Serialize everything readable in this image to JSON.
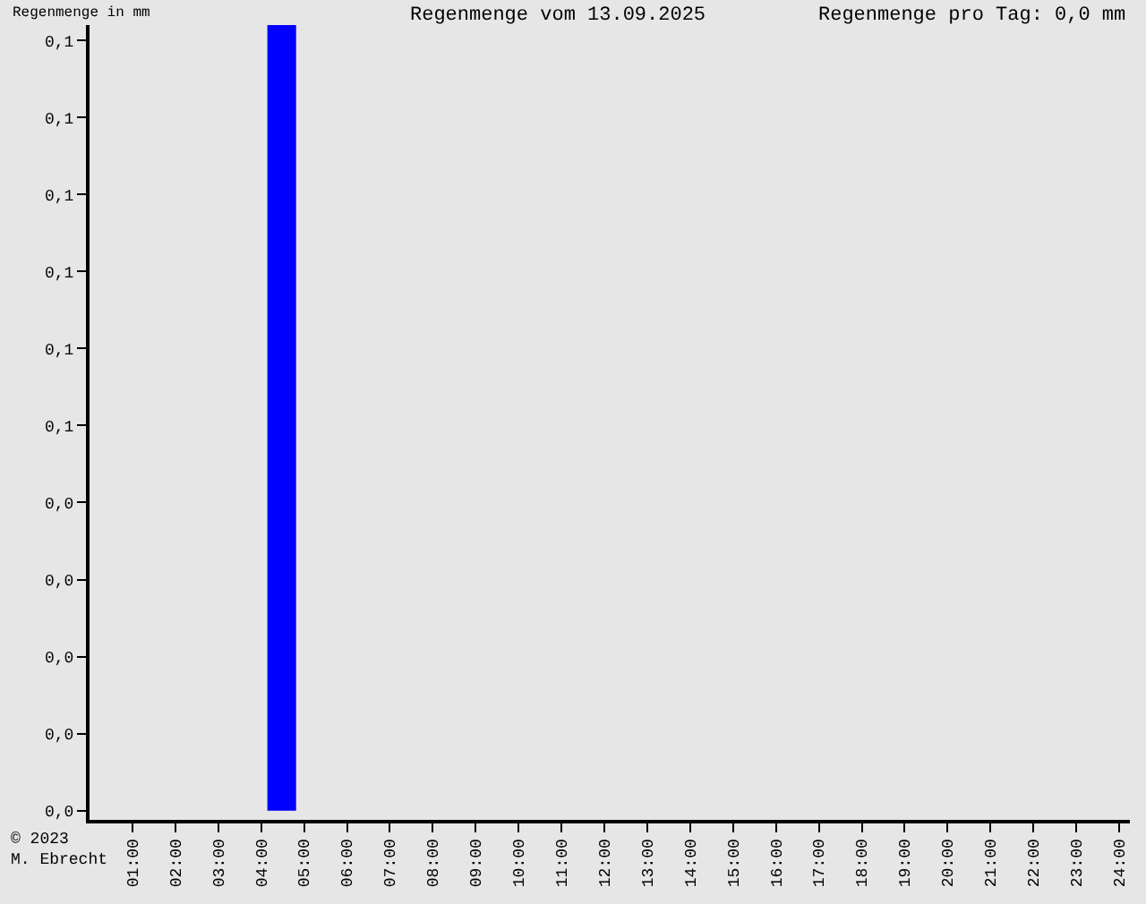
{
  "chart_data": {
    "type": "bar",
    "title": "Regenmenge vom 13.09.2025",
    "ylabel": "Regenmenge in mm",
    "annotations": [
      "Regenmenge pro Tag: 0,0 mm",
      "© 2023\nM. Ebrecht"
    ],
    "x": [
      4.48
    ],
    "values": [
      0.102
    ],
    "color": "#0000ff",
    "xlim": [
      0,
      24.25
    ],
    "ylim": [
      -0.0012,
      0.102
    ],
    "xticks": [
      {
        "value": 1,
        "label": "01:00"
      },
      {
        "value": 2,
        "label": "02:00"
      },
      {
        "value": 3,
        "label": "03:00"
      },
      {
        "value": 4,
        "label": "04:00"
      },
      {
        "value": 5,
        "label": "05:00"
      },
      {
        "value": 6,
        "label": "06:00"
      },
      {
        "value": 7,
        "label": "07:00"
      },
      {
        "value": 8,
        "label": "08:00"
      },
      {
        "value": 9,
        "label": "09:00"
      },
      {
        "value": 10,
        "label": "10:00"
      },
      {
        "value": 11,
        "label": "11:00"
      },
      {
        "value": 12,
        "label": "12:00"
      },
      {
        "value": 13,
        "label": "13:00"
      },
      {
        "value": 14,
        "label": "14:00"
      },
      {
        "value": 15,
        "label": "15:00"
      },
      {
        "value": 16,
        "label": "16:00"
      },
      {
        "value": 17,
        "label": "17:00"
      },
      {
        "value": 18,
        "label": "18:00"
      },
      {
        "value": 19,
        "label": "19:00"
      },
      {
        "value": 20,
        "label": "20:00"
      },
      {
        "value": 21,
        "label": "21:00"
      },
      {
        "value": 22,
        "label": "22:00"
      },
      {
        "value": 23,
        "label": "23:00"
      },
      {
        "value": 24,
        "label": "24:00"
      }
    ],
    "yticks": [
      {
        "value": 0,
        "label": "0,0"
      },
      {
        "value": 0.01,
        "label": "0,0"
      },
      {
        "value": 0.02,
        "label": "0,0"
      },
      {
        "value": 0.03,
        "label": "0,0"
      },
      {
        "value": 0.04,
        "label": "0,0"
      },
      {
        "value": 0.05,
        "label": "0,1"
      },
      {
        "value": 0.06,
        "label": "0,1"
      },
      {
        "value": 0.07,
        "label": "0,1"
      },
      {
        "value": 0.08,
        "label": "0,1"
      },
      {
        "value": 0.09,
        "label": "0,1"
      },
      {
        "value": 0.1,
        "label": "0,1"
      }
    ],
    "grid": false
  }
}
